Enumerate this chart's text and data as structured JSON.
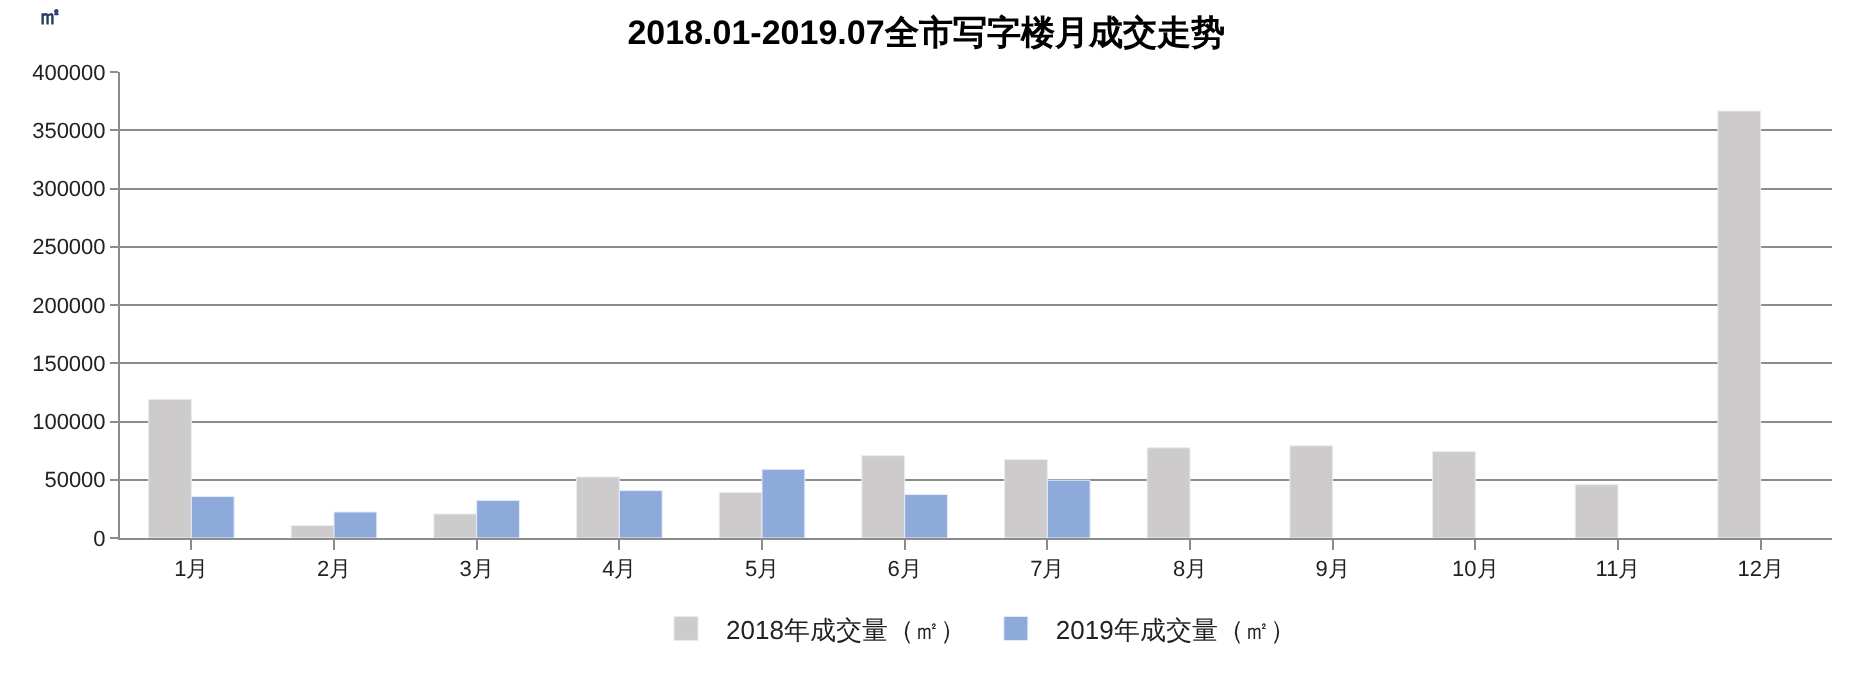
{
  "chart_data": {
    "type": "bar",
    "title": "2018.01-2019.07全市写字楼月成交走势",
    "ylabel": "㎡",
    "categories": [
      "1月",
      "2月",
      "3月",
      "4月",
      "5月",
      "6月",
      "7月",
      "8月",
      "9月",
      "10月",
      "11月",
      "12月"
    ],
    "series": [
      {
        "name": "2018年成交量（㎡）",
        "color": "#cdcbcc",
        "values": [
          119000,
          10600,
          20600,
          52400,
          39000,
          70700,
          67400,
          77400,
          79100,
          74100,
          45700,
          366500
        ]
      },
      {
        "name": "2019年成交量（㎡）",
        "color": "#8eaadb",
        "values": [
          35600,
          22300,
          32300,
          40700,
          59000,
          37300,
          49600,
          null,
          null,
          null,
          null,
          null
        ]
      }
    ],
    "ylim": [
      0,
      400000
    ],
    "yticks": [
      0,
      50000,
      100000,
      150000,
      200000,
      250000,
      300000,
      350000,
      400000
    ],
    "grid": "y",
    "legend": "bottom"
  }
}
